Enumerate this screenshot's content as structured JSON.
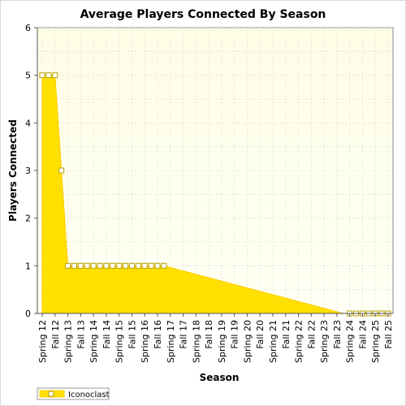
{
  "chart_data": {
    "type": "area",
    "title": "Average Players Connected By Season",
    "xlabel": "Season",
    "ylabel": "Players Connected",
    "ylim": [
      0,
      6
    ],
    "yticks": [
      0,
      1,
      2,
      3,
      4,
      5,
      6
    ],
    "grid": true,
    "legend_position": "bottom-left",
    "categories": [
      "Spring 12",
      "Fall 12",
      "Spring 13",
      "Fall 13",
      "Spring 14",
      "Fall 14",
      "Spring 15",
      "Fall 15",
      "Spring 16",
      "Fall 16",
      "Spring 17",
      "Fall 17",
      "Spring 18",
      "Fall 18",
      "Spring 19",
      "Fall 19",
      "Spring 20",
      "Fall 20",
      "Spring 21",
      "Fall 21",
      "Spring 22",
      "Fall 22",
      "Spring 23",
      "Fall 23",
      "Spring 24",
      "Fall 24",
      "Spring 25",
      "Fall 25"
    ],
    "series": [
      {
        "name": "Iconoclast",
        "x": [
          0,
          0.5,
          1,
          1.5,
          2,
          2.5,
          3,
          3.5,
          4,
          4.5,
          5,
          5.5,
          6,
          6.5,
          7,
          7.5,
          8,
          8.5,
          9,
          9.5,
          23.5,
          24,
          24.5,
          25,
          25.5,
          26,
          26.5,
          27
        ],
        "values": [
          5,
          5,
          5,
          3,
          1,
          1,
          1,
          1,
          1,
          1,
          1,
          1,
          1,
          1,
          1,
          1,
          1,
          1,
          1,
          1,
          0,
          0,
          0,
          0,
          0,
          0,
          0,
          0
        ],
        "markers": [
          true,
          true,
          true,
          true,
          true,
          true,
          true,
          true,
          true,
          true,
          true,
          true,
          true,
          true,
          true,
          true,
          true,
          true,
          true,
          true,
          false,
          true,
          true,
          true,
          true,
          true,
          true,
          true
        ]
      }
    ]
  },
  "colors": {
    "fill": "#ffe000",
    "fill_edge": "#ffcc00",
    "plot_bg_top": "#fefee6",
    "plot_bg_bottom": "#fffff4",
    "grid": "#cccccc",
    "marker_fill": "#ffffff",
    "marker_stroke": "#b8a000"
  }
}
